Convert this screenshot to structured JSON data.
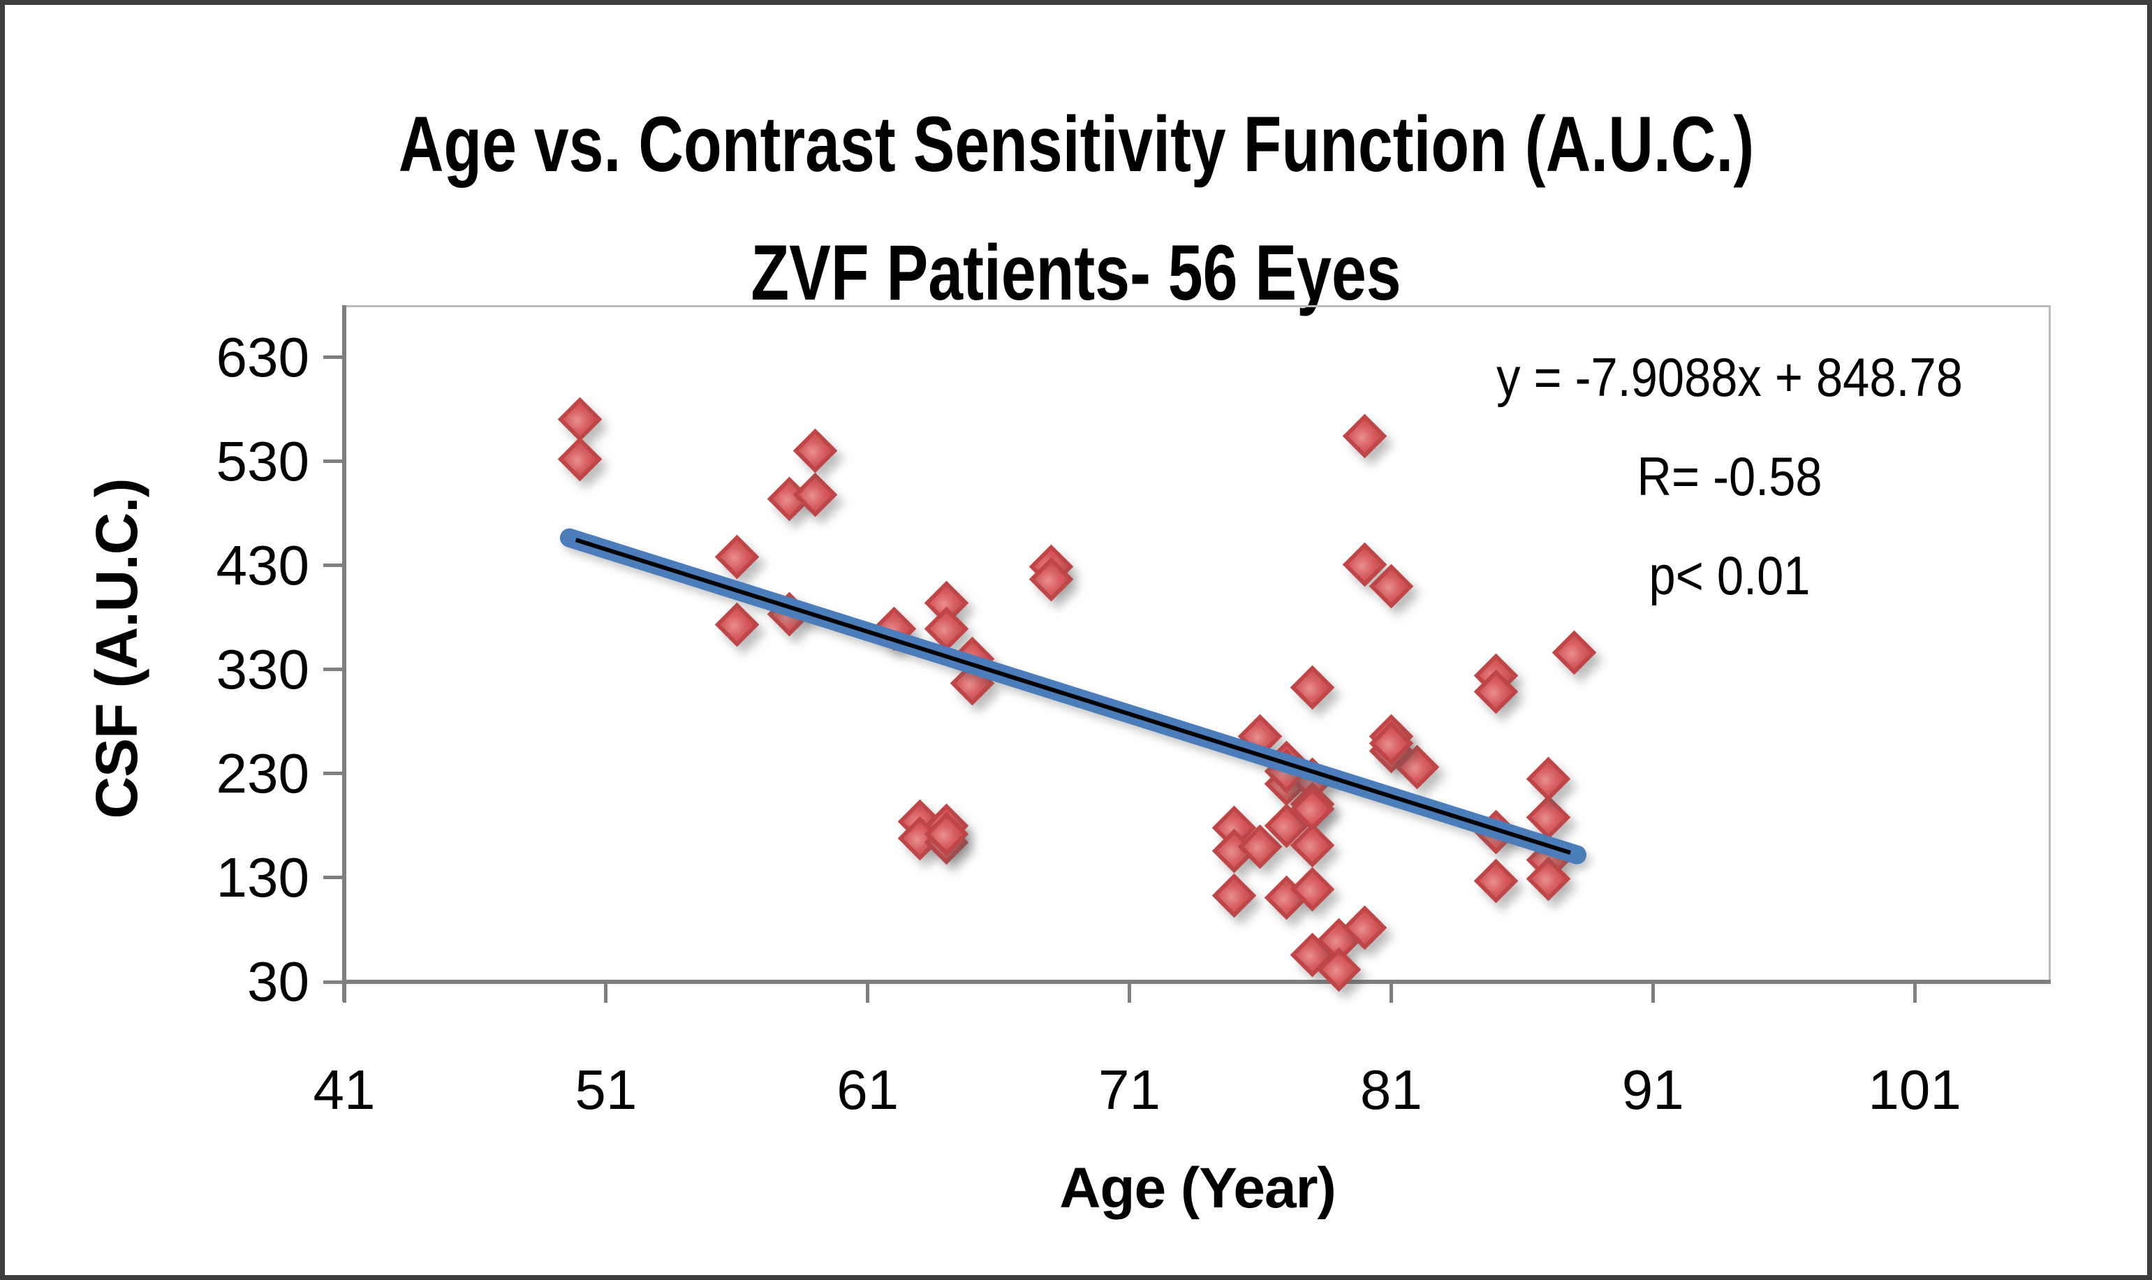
{
  "figure_title": {
    "line1": "Age vs. Contrast Sensitivity Function (A.U.C.)",
    "line2": "ZVF Patients- 56 Eyes"
  },
  "annotation": {
    "equation": "y = -7.9088x + 848.78",
    "r_value": "R= -0.58",
    "p_value": "p< 0.01"
  },
  "chart_data": {
    "type": "scatter",
    "title_line1": "Age vs. Contrast Sensitivity Function (A.U.C.)",
    "title_line2": "ZVF Patients- 56 Eyes",
    "xlabel": "Age (Year)",
    "ylabel": "CSF (A.U.C.)",
    "x_ticks": [
      41,
      51,
      61,
      71,
      81,
      91,
      101
    ],
    "y_ticks": [
      30,
      130,
      230,
      330,
      430,
      530,
      630
    ],
    "xlim": [
      41,
      106.2
    ],
    "ylim": [
      30,
      680
    ],
    "grid": false,
    "legend": false,
    "n_points": 56,
    "points": [
      [
        50,
        570
      ],
      [
        50,
        532
      ],
      [
        56,
        438
      ],
      [
        56,
        373
      ],
      [
        58,
        494
      ],
      [
        59,
        498
      ],
      [
        59,
        540
      ],
      [
        58,
        383
      ],
      [
        62,
        369
      ],
      [
        64,
        394
      ],
      [
        64,
        369
      ],
      [
        65,
        340
      ],
      [
        65,
        317
      ],
      [
        63,
        184
      ],
      [
        64,
        180
      ],
      [
        63,
        168
      ],
      [
        64,
        164
      ],
      [
        64,
        172
      ],
      [
        68,
        429
      ],
      [
        68,
        417
      ],
      [
        76,
        266
      ],
      [
        78,
        313
      ],
      [
        77,
        240
      ],
      [
        77,
        220
      ],
      [
        78,
        224
      ],
      [
        78,
        201
      ],
      [
        77,
        232
      ],
      [
        81,
        266
      ],
      [
        81,
        252
      ],
      [
        82,
        236
      ],
      [
        75,
        178
      ],
      [
        75,
        156
      ],
      [
        76,
        160
      ],
      [
        77,
        180
      ],
      [
        78,
        196
      ],
      [
        78,
        161
      ],
      [
        75,
        113
      ],
      [
        77,
        111
      ],
      [
        78,
        119
      ],
      [
        78,
        56
      ],
      [
        79,
        70
      ],
      [
        79,
        42
      ],
      [
        80,
        82
      ],
      [
        85,
        174
      ],
      [
        87,
        188
      ],
      [
        87,
        147
      ],
      [
        87,
        129
      ],
      [
        85,
        127
      ],
      [
        87,
        225
      ],
      [
        85,
        324
      ],
      [
        85,
        309
      ],
      [
        88,
        346
      ],
      [
        80,
        554
      ],
      [
        80,
        431
      ],
      [
        81,
        410
      ],
      [
        81,
        259
      ]
    ],
    "trend": {
      "slope": -7.9088,
      "intercept": 848.78,
      "x_start": 49.6,
      "x_end": 88.1,
      "equation": "y = -7.9088x + 848.78",
      "r": -0.58,
      "p": "< 0.01"
    },
    "colors": {
      "marker_fill": "#d86061",
      "marker_border": "#c04547",
      "trend_blue": "#4a7dba",
      "trend_black": "#000000",
      "axis_gray": "#7f7f7f",
      "plot_border": "#bcbcbc",
      "figure_border": "#3d3d3d"
    }
  }
}
